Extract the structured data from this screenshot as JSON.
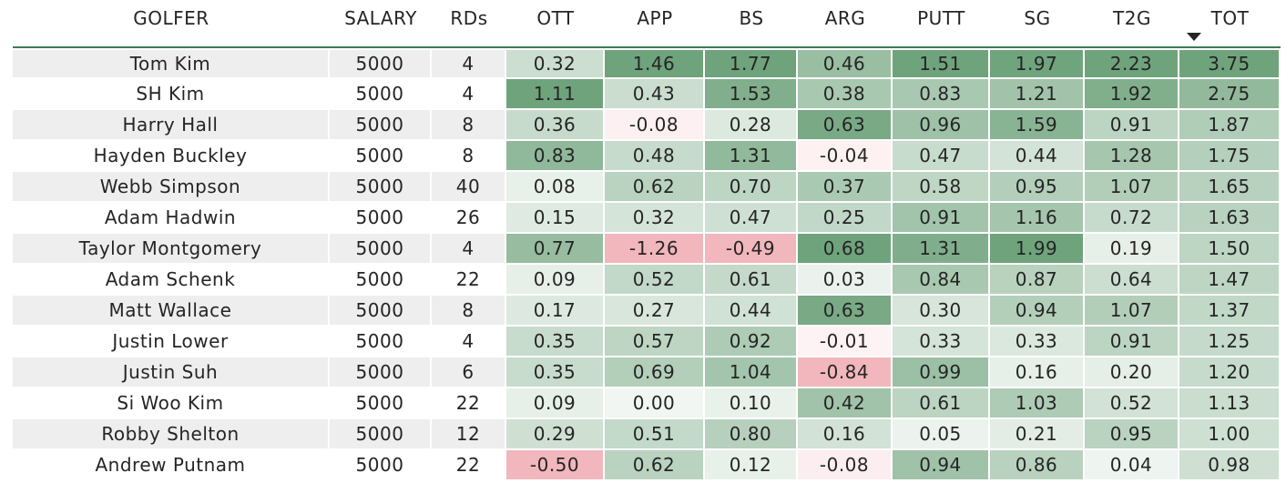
{
  "table": {
    "columns": [
      "GOLFER",
      "SALARY",
      "RDs",
      "OTT",
      "APP",
      "BS",
      "ARG",
      "PUTT",
      "SG",
      "T2G",
      "TOT"
    ],
    "sorted_column": "TOT",
    "sort_direction": "descending",
    "colors": {
      "positive_max": "#6fa37c",
      "neutral": "#ffffff",
      "negative_max": "#f2b6bd",
      "header_rule": "#3b7a57",
      "row_band": "#eeeeee"
    },
    "rows": [
      {
        "golfer": "Tom Kim",
        "salary": "5000",
        "rds": "4",
        "ott": "0.32",
        "app": "1.46",
        "bs": "1.77",
        "arg": "0.46",
        "putt": "1.51",
        "sg": "1.97",
        "t2g": "2.23",
        "tot": "3.75"
      },
      {
        "golfer": "SH Kim",
        "salary": "5000",
        "rds": "4",
        "ott": "1.11",
        "app": "0.43",
        "bs": "1.53",
        "arg": "0.38",
        "putt": "0.83",
        "sg": "1.21",
        "t2g": "1.92",
        "tot": "2.75"
      },
      {
        "golfer": "Harry Hall",
        "salary": "5000",
        "rds": "8",
        "ott": "0.36",
        "app": "-0.08",
        "bs": "0.28",
        "arg": "0.63",
        "putt": "0.96",
        "sg": "1.59",
        "t2g": "0.91",
        "tot": "1.87"
      },
      {
        "golfer": "Hayden Buckley",
        "salary": "5000",
        "rds": "8",
        "ott": "0.83",
        "app": "0.48",
        "bs": "1.31",
        "arg": "-0.04",
        "putt": "0.47",
        "sg": "0.44",
        "t2g": "1.28",
        "tot": "1.75"
      },
      {
        "golfer": "Webb Simpson",
        "salary": "5000",
        "rds": "40",
        "ott": "0.08",
        "app": "0.62",
        "bs": "0.70",
        "arg": "0.37",
        "putt": "0.58",
        "sg": "0.95",
        "t2g": "1.07",
        "tot": "1.65"
      },
      {
        "golfer": "Adam Hadwin",
        "salary": "5000",
        "rds": "26",
        "ott": "0.15",
        "app": "0.32",
        "bs": "0.47",
        "arg": "0.25",
        "putt": "0.91",
        "sg": "1.16",
        "t2g": "0.72",
        "tot": "1.63"
      },
      {
        "golfer": "Taylor Montgomery",
        "salary": "5000",
        "rds": "4",
        "ott": "0.77",
        "app": "-1.26",
        "bs": "-0.49",
        "arg": "0.68",
        "putt": "1.31",
        "sg": "1.99",
        "t2g": "0.19",
        "tot": "1.50"
      },
      {
        "golfer": "Adam Schenk",
        "salary": "5000",
        "rds": "22",
        "ott": "0.09",
        "app": "0.52",
        "bs": "0.61",
        "arg": "0.03",
        "putt": "0.84",
        "sg": "0.87",
        "t2g": "0.64",
        "tot": "1.47"
      },
      {
        "golfer": "Matt Wallace",
        "salary": "5000",
        "rds": "8",
        "ott": "0.17",
        "app": "0.27",
        "bs": "0.44",
        "arg": "0.63",
        "putt": "0.30",
        "sg": "0.94",
        "t2g": "1.07",
        "tot": "1.37"
      },
      {
        "golfer": "Justin Lower",
        "salary": "5000",
        "rds": "4",
        "ott": "0.35",
        "app": "0.57",
        "bs": "0.92",
        "arg": "-0.01",
        "putt": "0.33",
        "sg": "0.33",
        "t2g": "0.91",
        "tot": "1.25"
      },
      {
        "golfer": "Justin Suh",
        "salary": "5000",
        "rds": "6",
        "ott": "0.35",
        "app": "0.69",
        "bs": "1.04",
        "arg": "-0.84",
        "putt": "0.99",
        "sg": "0.16",
        "t2g": "0.20",
        "tot": "1.20"
      },
      {
        "golfer": "Si Woo Kim",
        "salary": "5000",
        "rds": "22",
        "ott": "0.09",
        "app": "0.00",
        "bs": "0.10",
        "arg": "0.42",
        "putt": "0.61",
        "sg": "1.03",
        "t2g": "0.52",
        "tot": "1.13"
      },
      {
        "golfer": "Robby Shelton",
        "salary": "5000",
        "rds": "12",
        "ott": "0.29",
        "app": "0.51",
        "bs": "0.80",
        "arg": "0.16",
        "putt": "0.05",
        "sg": "0.21",
        "t2g": "0.95",
        "tot": "1.00"
      },
      {
        "golfer": "Andrew Putnam",
        "salary": "5000",
        "rds": "22",
        "ott": "-0.50",
        "app": "0.62",
        "bs": "0.12",
        "arg": "-0.08",
        "putt": "0.94",
        "sg": "0.86",
        "t2g": "0.04",
        "tot": "0.98"
      }
    ]
  },
  "chart_data": {
    "type": "table",
    "columns": [
      "GOLFER",
      "SALARY",
      "RDs",
      "OTT",
      "APP",
      "BS",
      "ARG",
      "PUTT",
      "SG",
      "T2G",
      "TOT"
    ],
    "heatmap_columns": [
      "OTT",
      "APP",
      "BS",
      "ARG",
      "PUTT",
      "SG",
      "T2G",
      "TOT"
    ],
    "sorted_by": "TOT",
    "sort_direction": "descending",
    "rows": [
      [
        "Tom Kim",
        5000,
        4,
        0.32,
        1.46,
        1.77,
        0.46,
        1.51,
        1.97,
        2.23,
        3.75
      ],
      [
        "SH Kim",
        5000,
        4,
        1.11,
        0.43,
        1.53,
        0.38,
        0.83,
        1.21,
        1.92,
        2.75
      ],
      [
        "Harry Hall",
        5000,
        8,
        0.36,
        -0.08,
        0.28,
        0.63,
        0.96,
        1.59,
        0.91,
        1.87
      ],
      [
        "Hayden Buckley",
        5000,
        8,
        0.83,
        0.48,
        1.31,
        -0.04,
        0.47,
        0.44,
        1.28,
        1.75
      ],
      [
        "Webb Simpson",
        5000,
        40,
        0.08,
        0.62,
        0.7,
        0.37,
        0.58,
        0.95,
        1.07,
        1.65
      ],
      [
        "Adam Hadwin",
        5000,
        26,
        0.15,
        0.32,
        0.47,
        0.25,
        0.91,
        1.16,
        0.72,
        1.63
      ],
      [
        "Taylor Montgomery",
        5000,
        4,
        0.77,
        -1.26,
        -0.49,
        0.68,
        1.31,
        1.99,
        0.19,
        1.5
      ],
      [
        "Adam Schenk",
        5000,
        22,
        0.09,
        0.52,
        0.61,
        0.03,
        0.84,
        0.87,
        0.64,
        1.47
      ],
      [
        "Matt Wallace",
        5000,
        8,
        0.17,
        0.27,
        0.44,
        0.63,
        0.3,
        0.94,
        1.07,
        1.37
      ],
      [
        "Justin Lower",
        5000,
        4,
        0.35,
        0.57,
        0.92,
        -0.01,
        0.33,
        0.33,
        0.91,
        1.25
      ],
      [
        "Justin Suh",
        5000,
        6,
        0.35,
        0.69,
        1.04,
        -0.84,
        0.99,
        0.16,
        0.2,
        1.2
      ],
      [
        "Si Woo Kim",
        5000,
        22,
        0.09,
        0.0,
        0.1,
        0.42,
        0.61,
        1.03,
        0.52,
        1.13
      ],
      [
        "Robby Shelton",
        5000,
        12,
        0.29,
        0.51,
        0.8,
        0.16,
        0.05,
        0.21,
        0.95,
        1.0
      ],
      [
        "Andrew Putnam",
        5000,
        22,
        -0.5,
        0.62,
        0.12,
        -0.08,
        0.94,
        0.86,
        0.04,
        0.98
      ]
    ]
  }
}
